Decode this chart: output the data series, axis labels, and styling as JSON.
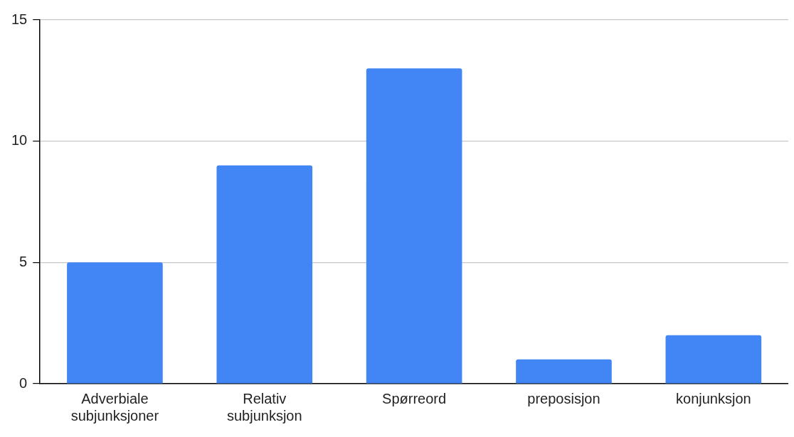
{
  "chart_data": {
    "type": "bar",
    "categories": [
      "Adverbiale subjunksjoner",
      "Relativ subjunksjon",
      "Spørreord",
      "preposisjon",
      "konjunksjon"
    ],
    "values": [
      5,
      9,
      13,
      1,
      2
    ],
    "color": "#4285f4",
    "ylim": [
      0,
      15
    ],
    "yticks": [
      0,
      5,
      10,
      15
    ],
    "grid": "y"
  }
}
